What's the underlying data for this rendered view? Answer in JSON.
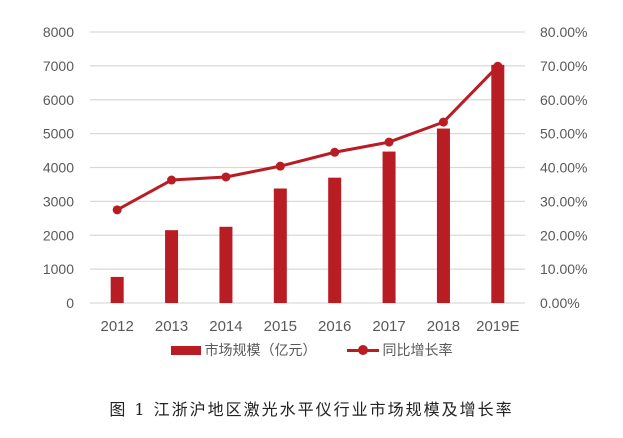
{
  "chart_data": {
    "type": "bar+line",
    "title": "图 1  江浙沪地区激光水平仪行业市场规模及增长率",
    "categories": [
      "2012",
      "2013",
      "2014",
      "2015",
      "2016",
      "2017",
      "2018",
      "2019E"
    ],
    "series": [
      {
        "name": "市场规模（亿元）",
        "type": "bar",
        "axis": "left",
        "color": "#b81d23",
        "values": [
          770,
          2150,
          2250,
          3380,
          3700,
          4470,
          5150,
          7030
        ]
      },
      {
        "name": "同比增长率",
        "type": "line",
        "axis": "right",
        "color": "#b81d23",
        "values": [
          27.5,
          36.3,
          37.2,
          40.4,
          44.5,
          47.5,
          53.4,
          69.9
        ]
      }
    ],
    "left_axis": {
      "ylim": [
        0,
        8000
      ],
      "ticks": [
        "0",
        "1000",
        "2000",
        "3000",
        "4000",
        "5000",
        "6000",
        "7000",
        "8000"
      ]
    },
    "right_axis": {
      "ylim": [
        0,
        80
      ],
      "ticks": [
        "0.00%",
        "10.00%",
        "20.00%",
        "30.00%",
        "40.00%",
        "50.00%",
        "60.00%",
        "70.00%",
        "80.00%"
      ]
    },
    "grid": true,
    "legend_position": "bottom"
  },
  "legend": {
    "bar_label": "市场规模（亿元）",
    "line_label": "同比增长率"
  },
  "caption": "图 1  江浙沪地区激光水平仪行业市场规模及增长率"
}
